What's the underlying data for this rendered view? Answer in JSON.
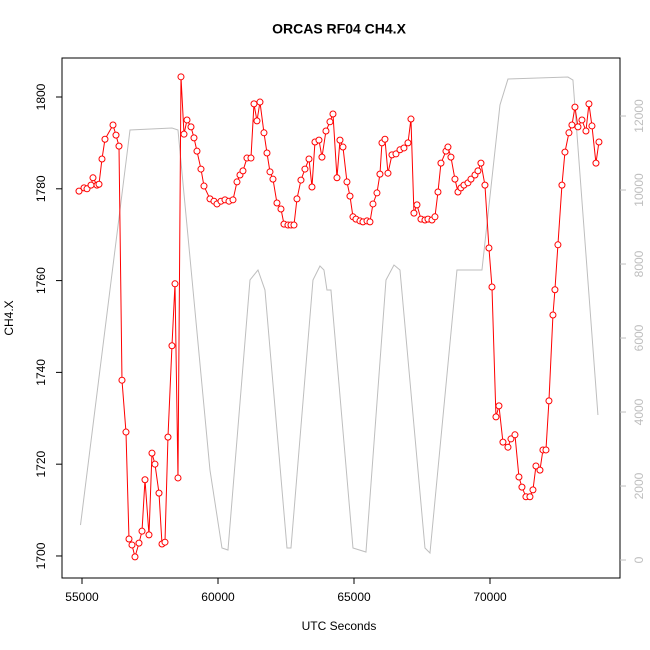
{
  "chart_data": {
    "type": "line",
    "title": "ORCAS RF04 CH4.X",
    "x_label": "UTC Seconds",
    "y_label": "CH4.X",
    "xlim": [
      54265,
      74779
    ],
    "ylim": [
      1695.2,
      1808.5
    ],
    "y2lim": [
      -486,
      13568
    ],
    "xticks": [
      55000,
      60000,
      65000,
      70000
    ],
    "yticks": [
      1700,
      1720,
      1740,
      1760,
      1780,
      1800
    ],
    "y2ticks": [
      0,
      2000,
      4000,
      6000,
      8000,
      10000,
      12000
    ],
    "series": [
      {
        "color": "#bebebe",
        "axis": "y2",
        "marker": false,
        "x": [
          54945,
          56765,
          58308,
          58529,
          59705,
          60146,
          60367,
          61176,
          61470,
          61727,
          62536,
          62683,
          63492,
          63749,
          63896,
          64006,
          64153,
          64962,
          65440,
          66176,
          66470,
          66690,
          67609,
          67793,
          68785,
          69704,
          70366,
          70660,
          72865,
          73049,
          73968
        ],
        "values": [
          946,
          11622,
          11676,
          11622,
          2432,
          324,
          270,
          7568,
          7838,
          7297,
          324,
          324,
          7568,
          7946,
          7838,
          7297,
          7297,
          324,
          216,
          7568,
          7973,
          7838,
          324,
          189,
          7838,
          7838,
          12297,
          12999,
          13054,
          12973,
          3919
        ]
      },
      {
        "color": "#ff0000",
        "axis": "y",
        "marker": true,
        "x": [
          54890,
          55074,
          55184,
          55331,
          55404,
          55551,
          55625,
          55735,
          55845,
          56140,
          56250,
          56360,
          56470,
          56617,
          56728,
          56838,
          56948,
          57095,
          57206,
          57316,
          57463,
          57573,
          57683,
          57831,
          57941,
          58051,
          58161,
          58308,
          58419,
          58529,
          58639,
          58750,
          58860,
          59007,
          59117,
          59227,
          59374,
          59485,
          59705,
          59852,
          59963,
          60110,
          60257,
          60404,
          60551,
          60698,
          60808,
          60918,
          61065,
          61212,
          61323,
          61433,
          61543,
          61690,
          61801,
          61911,
          62021,
          62168,
          62315,
          62426,
          62573,
          62683,
          62793,
          62903,
          63050,
          63197,
          63345,
          63455,
          63565,
          63712,
          63822,
          63969,
          64116,
          64227,
          64374,
          64484,
          64594,
          64741,
          64852,
          64962,
          65072,
          65219,
          65329,
          65477,
          65587,
          65697,
          65844,
          65954,
          66028,
          66138,
          66249,
          66396,
          66543,
          66690,
          66837,
          66984,
          67094,
          67204,
          67315,
          67462,
          67609,
          67719,
          67866,
          67976,
          68087,
          68197,
          68381,
          68454,
          68564,
          68711,
          68822,
          68932,
          69042,
          69189,
          69300,
          69447,
          69557,
          69667,
          69814,
          69961,
          70072,
          70219,
          70329,
          70476,
          70660,
          70770,
          70917,
          71064,
          71174,
          71321,
          71468,
          71579,
          71689,
          71836,
          71946,
          72057,
          72167,
          72314,
          72387,
          72497,
          72645,
          72755,
          72902,
          73012,
          73123,
          73233,
          73380,
          73527,
          73637,
          73748,
          73895,
          74005
        ],
        "values": [
          1779.5,
          1780.2,
          1780,
          1780.8,
          1782.4,
          1780.8,
          1781,
          1786.5,
          1790.8,
          1793.9,
          1791.7,
          1789.3,
          1738.3,
          1727,
          1703.7,
          1702.4,
          1699.8,
          1702.8,
          1705.4,
          1716.6,
          1704.6,
          1722.4,
          1720,
          1713.7,
          1702.6,
          1703,
          1725.9,
          1745.8,
          1759.3,
          1717,
          1804.4,
          1791.9,
          1795,
          1793.5,
          1791.1,
          1788.2,
          1784.3,
          1780.6,
          1777.8,
          1777.3,
          1776.7,
          1777.3,
          1777.6,
          1777.3,
          1777.6,
          1781.5,
          1783,
          1783.9,
          1786.7,
          1786.7,
          1798.5,
          1794.8,
          1798.9,
          1792.2,
          1787.8,
          1783.7,
          1782.1,
          1776.9,
          1775.6,
          1772.3,
          1772.1,
          1772.1,
          1772.1,
          1777.8,
          1781.9,
          1784.3,
          1786.5,
          1780.4,
          1790.2,
          1790.6,
          1786.9,
          1792.6,
          1794.6,
          1796.3,
          1782.4,
          1790.6,
          1789.1,
          1781.5,
          1778.4,
          1773.9,
          1773.4,
          1773,
          1772.8,
          1773,
          1772.8,
          1776.7,
          1779.1,
          1783.2,
          1790,
          1790.8,
          1783.4,
          1787.4,
          1787.6,
          1788.5,
          1788.9,
          1790,
          1795.2,
          1774.7,
          1776.5,
          1773.4,
          1773.2,
          1773.4,
          1773.2,
          1773.9,
          1779.3,
          1785.6,
          1788.2,
          1789.1,
          1786.9,
          1782.1,
          1779.3,
          1780.2,
          1780.8,
          1781.3,
          1782.1,
          1783,
          1783.9,
          1785.6,
          1780.8,
          1767.1,
          1758.6,
          1730.3,
          1732.7,
          1724.8,
          1723.7,
          1725.5,
          1726.4,
          1717.2,
          1715,
          1712.9,
          1712.9,
          1714.4,
          1719.6,
          1718.7,
          1723.1,
          1723.1,
          1733.8,
          1752.5,
          1758,
          1767.8,
          1780.8,
          1788,
          1792.2,
          1793.9,
          1797.8,
          1793.5,
          1795,
          1792.6,
          1798.5,
          1793.7,
          1785.6,
          1790.2
        ]
      }
    ]
  }
}
